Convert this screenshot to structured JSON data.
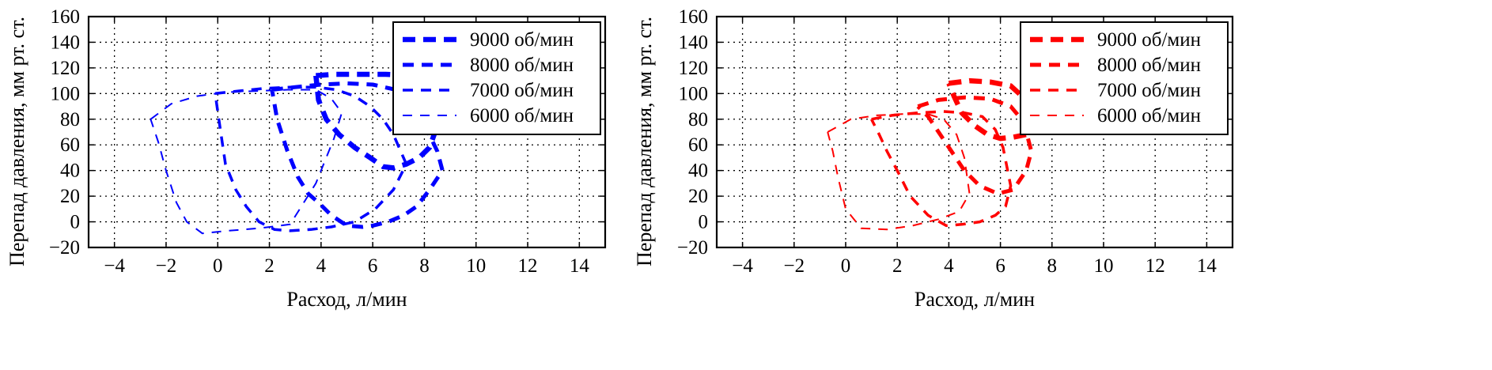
{
  "chart_data": [
    {
      "type": "line",
      "xlabel": "Расход, л/мин",
      "ylabel": "Перепад давления, мм рт. ст.",
      "xlim": [
        -5,
        15
      ],
      "ylim": [
        -20,
        160
      ],
      "xticks": [
        -4,
        -2,
        0,
        2,
        4,
        6,
        8,
        10,
        12,
        14
      ],
      "yticks": [
        -20,
        0,
        20,
        40,
        60,
        80,
        100,
        120,
        140,
        160
      ],
      "xtick_labels": [
        "−4",
        "−2",
        "0",
        "2",
        "4",
        "6",
        "8",
        "10",
        "12",
        "14"
      ],
      "ytick_labels": [
        "−20",
        "0",
        "20",
        "40",
        "60",
        "80",
        "100",
        "120",
        "140",
        "160"
      ],
      "grid": true,
      "legend": "top-right",
      "color": "#0000ff",
      "series": [
        {
          "name": "9000 об/мин",
          "x": [
            3.8,
            4.5,
            5.5,
            6.5,
            7.5,
            8.2,
            8.6,
            8.5,
            8.2,
            7.8,
            7.3,
            6.8,
            6.4,
            5.9,
            5.3,
            4.7,
            4.2,
            3.9,
            3.8
          ],
          "y": [
            114,
            115,
            115,
            115,
            114,
            110,
            95,
            75,
            58,
            50,
            45,
            42,
            43,
            50,
            58,
            68,
            80,
            95,
            114
          ]
        },
        {
          "name": "8000 об/мин",
          "x": [
            2.1,
            3.0,
            4.0,
            5.0,
            6.0,
            6.9,
            7.4,
            7.8,
            8.1,
            8.5,
            8.7,
            8.2,
            7.7,
            7.2,
            6.6,
            6.0,
            5.6,
            5.0,
            4.4,
            3.9,
            3.5,
            3.1,
            2.7,
            2.3,
            2.1
          ],
          "y": [
            103,
            105,
            107,
            108,
            107,
            103,
            95,
            85,
            72,
            55,
            40,
            25,
            12,
            5,
            0,
            -3,
            -4,
            -3,
            5,
            15,
            22,
            35,
            55,
            80,
            103
          ]
        },
        {
          "name": "7000 об/мин",
          "x": [
            -0.1,
            0.8,
            1.8,
            2.8,
            3.8,
            4.6,
            5.3,
            5.9,
            6.4,
            6.8,
            7.3,
            6.8,
            6.1,
            5.3,
            4.4,
            3.6,
            2.8,
            2.2,
            1.6,
            1.1,
            0.7,
            0.3,
            0.1,
            -0.1
          ],
          "y": [
            100,
            102,
            104,
            105,
            105,
            103,
            98,
            90,
            80,
            68,
            45,
            25,
            10,
            0,
            -4,
            -6,
            -7,
            -6,
            0,
            12,
            25,
            45,
            72,
            100
          ]
        },
        {
          "name": "6000 об/мин",
          "x": [
            -2.6,
            -1.8,
            -0.8,
            0.3,
            1.5,
            2.7,
            3.8,
            4.4,
            4.8,
            4.5,
            3.8,
            2.8,
            1.6,
            0.4,
            -0.6,
            -1.2,
            -1.6,
            -2.0,
            -2.3,
            -2.6
          ],
          "y": [
            80,
            92,
            98,
            101,
            102,
            103,
            103,
            96,
            85,
            65,
            30,
            -2,
            -5,
            -7,
            -9,
            0,
            15,
            40,
            62,
            80
          ]
        }
      ]
    },
    {
      "type": "line",
      "xlabel": "Расход, л/мин",
      "ylabel": "Перепад давления, мм рт. ст.",
      "xlim": [
        -5,
        15
      ],
      "ylim": [
        -20,
        160
      ],
      "xticks": [
        -4,
        -2,
        0,
        2,
        4,
        6,
        8,
        10,
        12,
        14
      ],
      "yticks": [
        -20,
        0,
        20,
        40,
        60,
        80,
        100,
        120,
        140,
        160
      ],
      "xtick_labels": [
        "−4",
        "−2",
        "0",
        "2",
        "4",
        "6",
        "8",
        "10",
        "12",
        "14"
      ],
      "ytick_labels": [
        "−20",
        "0",
        "20",
        "40",
        "60",
        "80",
        "100",
        "120",
        "140",
        "160"
      ],
      "grid": true,
      "legend": "top-right",
      "color": "#ff0000",
      "series": [
        {
          "name": "9000 об/мин",
          "x": [
            4.0,
            4.8,
            5.6,
            6.4,
            7.0,
            7.3,
            7.0,
            6.5,
            6.0,
            5.5,
            5.0,
            4.5,
            4.2,
            4.0
          ],
          "y": [
            108,
            110,
            109,
            106,
            95,
            72,
            68,
            66,
            65,
            68,
            75,
            85,
            98,
            108
          ]
        },
        {
          "name": "8000 об/мин",
          "x": [
            2.8,
            3.6,
            4.6,
            5.6,
            6.4,
            6.9,
            7.2,
            7.0,
            6.5,
            5.9,
            5.2,
            4.6,
            4.1,
            3.6,
            3.2,
            2.8
          ],
          "y": [
            90,
            95,
            97,
            96,
            90,
            78,
            55,
            40,
            25,
            22,
            28,
            40,
            55,
            70,
            82,
            90
          ]
        },
        {
          "name": "7000 об/мин",
          "x": [
            1.0,
            1.8,
            2.8,
            3.8,
            4.6,
            5.3,
            5.8,
            6.1,
            6.4,
            6.2,
            5.8,
            5.2,
            4.5,
            3.9,
            3.2,
            2.5,
            2.0,
            1.6,
            1.3,
            1.0
          ],
          "y": [
            80,
            83,
            85,
            86,
            85,
            82,
            72,
            58,
            28,
            12,
            5,
            0,
            -2,
            -3,
            5,
            20,
            40,
            55,
            68,
            80
          ]
        },
        {
          "name": "6000 об/мин",
          "x": [
            -0.7,
            0.2,
            1.2,
            2.2,
            3.2,
            3.8,
            4.3,
            4.6,
            4.8,
            4.4,
            3.6,
            2.6,
            1.6,
            0.6,
            0.0,
            -0.3,
            -0.5,
            -0.7
          ],
          "y": [
            70,
            80,
            83,
            84,
            84,
            80,
            68,
            50,
            22,
            8,
            2,
            -3,
            -6,
            -5,
            10,
            35,
            55,
            70
          ]
        }
      ]
    }
  ]
}
